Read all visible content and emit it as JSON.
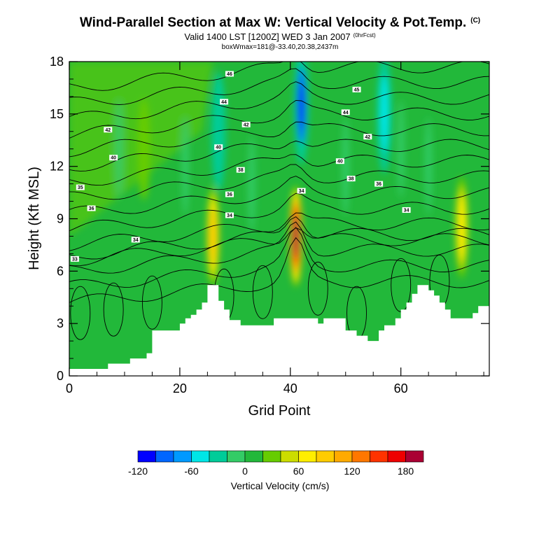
{
  "header": {
    "title": "Wind-Parallel Section at Max W: Vertical Velocity & Pot.Temp.",
    "copyright": "(C)",
    "subtitle": "Valid 1400 LST [1200Z] WED 3 Jan 2007",
    "subtitle_tag": "(0hrFcst)",
    "info": "boxWmax=181@-33.40,20.38,2437m"
  },
  "chart_data": {
    "type": "heatmap",
    "xlabel": "Grid Point",
    "ylabel": "Height (Kft MSL)",
    "xlim": [
      0,
      76
    ],
    "ylim": [
      0,
      18
    ],
    "x_ticks": [
      "0",
      "20",
      "40",
      "60"
    ],
    "x_tick_values": [
      0,
      20,
      40,
      60
    ],
    "y_ticks": [
      "0",
      "3",
      "6",
      "9",
      "12",
      "15",
      "18"
    ],
    "y_tick_values": [
      0,
      3,
      6,
      9,
      12,
      15,
      18
    ],
    "colorbar": {
      "label": "Vertical Velocity (cm/s)",
      "levels": [
        -120,
        -100,
        -80,
        -60,
        -40,
        -20,
        0,
        20,
        40,
        60,
        80,
        100,
        120,
        140,
        160,
        180,
        200
      ],
      "tick_labels": [
        "-120",
        "-60",
        "0",
        "60",
        "120",
        "180"
      ],
      "tick_values": [
        -120,
        -60,
        0,
        60,
        120,
        180
      ],
      "colors": [
        "#0000ff",
        "#0066ff",
        "#0099ff",
        "#00e6e6",
        "#00cc99",
        "#33cc66",
        "#22b83a",
        "#66cc00",
        "#ccdd00",
        "#ffee00",
        "#ffcc00",
        "#ffaa00",
        "#ff7700",
        "#ff3300",
        "#ee0000",
        "#aa0033"
      ]
    },
    "terrain_kft": [
      0.4,
      0.4,
      0.4,
      0.4,
      0.4,
      0.4,
      0.4,
      0.7,
      0.7,
      0.7,
      0.7,
      1.0,
      1.0,
      1.0,
      1.3,
      2.6,
      2.6,
      2.6,
      2.6,
      2.6,
      3.0,
      3.3,
      3.5,
      3.8,
      4.2,
      5.2,
      5.2,
      4.3,
      3.8,
      3.2,
      3.2,
      2.9,
      2.9,
      2.9,
      2.9,
      2.9,
      2.9,
      3.3,
      3.3,
      3.3,
      3.3,
      3.3,
      3.3,
      3.3,
      3.3,
      3.0,
      3.3,
      3.3,
      3.3,
      3.3,
      2.6,
      2.6,
      2.3,
      2.3,
      2.0,
      2.0,
      2.6,
      2.9,
      2.9,
      3.3,
      3.8,
      4.2,
      4.7,
      5.2,
      5.2,
      4.9,
      4.6,
      4.2,
      3.8,
      3.3,
      3.3,
      3.3,
      3.3,
      3.6,
      4.0,
      4.0
    ],
    "updrafts": [
      {
        "x": 41,
        "y_kft": 8,
        "w_max": 181
      },
      {
        "x": 26,
        "y_kft": 8,
        "w_max": 80
      },
      {
        "x": 71,
        "y_kft": 8.5,
        "w_max": 70
      },
      {
        "x": 13.5,
        "y_kft": 13,
        "w_max": 30
      }
    ],
    "downdrafts": [
      {
        "x": 42,
        "y_kft": 15.5,
        "w_min": -120
      },
      {
        "x": 57,
        "y_kft": 15,
        "w_min": -60
      },
      {
        "x": 27,
        "y_kft": 14,
        "w_min": -50
      }
    ],
    "isentropes": {
      "levels": [
        33,
        34,
        35,
        36,
        37,
        38,
        39,
        40,
        41,
        42,
        43,
        44,
        45,
        46,
        47,
        48
      ],
      "labels": [
        {
          "text": "33",
          "x": 1,
          "y": 6.7
        },
        {
          "text": "34",
          "x": 12,
          "y": 7.8
        },
        {
          "text": "35",
          "x": 2,
          "y": 10.8
        },
        {
          "text": "36",
          "x": 4,
          "y": 9.6
        },
        {
          "text": "40",
          "x": 8,
          "y": 12.5
        },
        {
          "text": "42",
          "x": 7,
          "y": 14.1
        },
        {
          "text": "46",
          "x": 29,
          "y": 17.3
        },
        {
          "text": "44",
          "x": 28,
          "y": 15.7
        },
        {
          "text": "42",
          "x": 32,
          "y": 14.4
        },
        {
          "text": "40",
          "x": 27,
          "y": 13.1
        },
        {
          "text": "38",
          "x": 31,
          "y": 11.8
        },
        {
          "text": "36",
          "x": 29,
          "y": 10.4
        },
        {
          "text": "34",
          "x": 29,
          "y": 9.2
        },
        {
          "text": "34",
          "x": 42,
          "y": 10.6
        },
        {
          "text": "45",
          "x": 52,
          "y": 16.4
        },
        {
          "text": "44",
          "x": 50,
          "y": 15.1
        },
        {
          "text": "42",
          "x": 54,
          "y": 13.7
        },
        {
          "text": "40",
          "x": 49,
          "y": 12.3
        },
        {
          "text": "38",
          "x": 51,
          "y": 11.3
        },
        {
          "text": "36",
          "x": 56,
          "y": 11.0
        },
        {
          "text": "34",
          "x": 61,
          "y": 9.5
        }
      ]
    }
  }
}
